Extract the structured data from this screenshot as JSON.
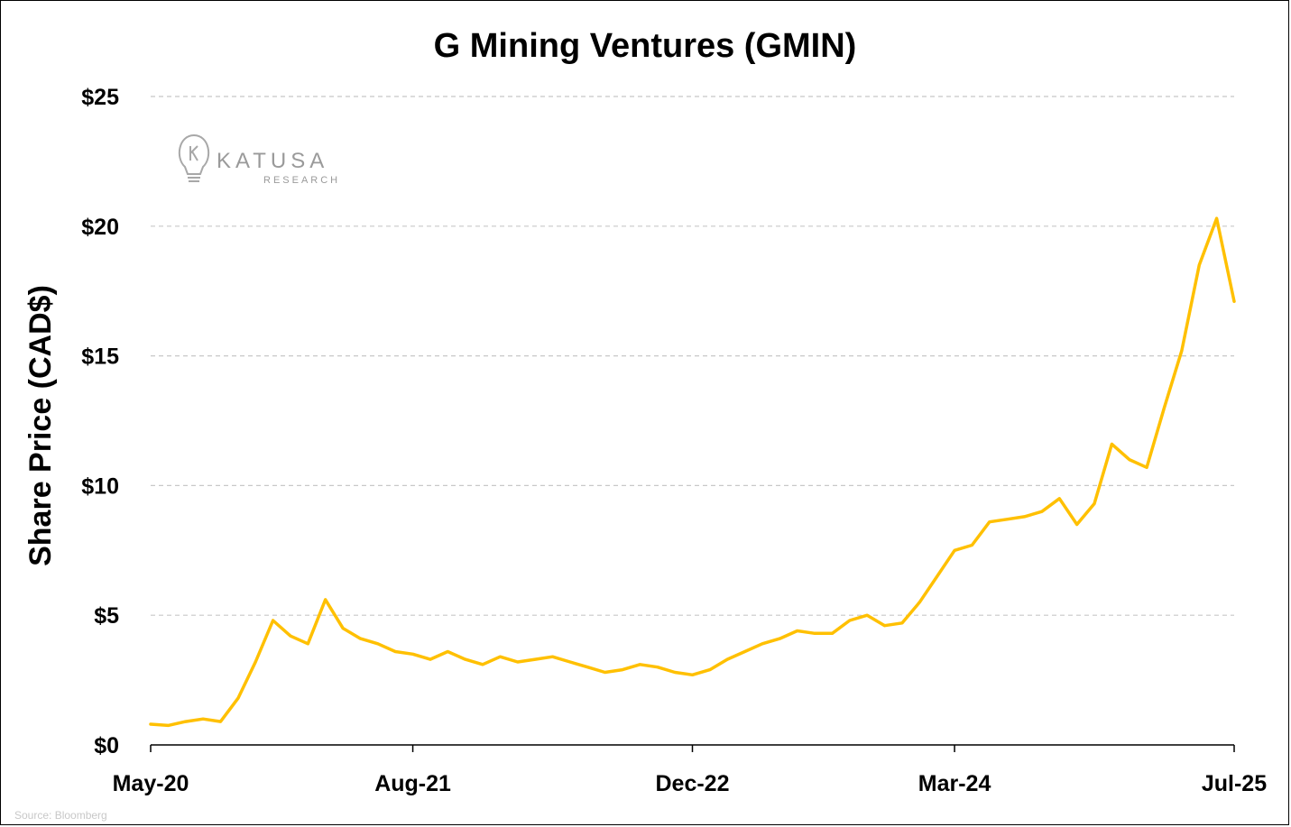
{
  "chart_data": {
    "type": "line",
    "title": "G Mining Ventures (GMIN)",
    "ylabel": "Share Price (CAD$)",
    "xlabel": "",
    "ylim": [
      0,
      25
    ],
    "y_ticks": [
      0,
      5,
      10,
      15,
      20,
      25
    ],
    "y_tick_labels": [
      "$0",
      "$5",
      "$10",
      "$15",
      "$20",
      "$25"
    ],
    "x_tick_labels": [
      "May-20",
      "Aug-21",
      "Dec-22",
      "Mar-24",
      "Jul-25"
    ],
    "x_tick_dates": [
      "2020-05",
      "2021-08",
      "2022-12",
      "2024-03",
      "2025-07"
    ],
    "grid": "horizontal dashed",
    "line_color": "#FFC000",
    "series": [
      {
        "x": [
          "2020-05",
          "2020-06",
          "2020-07",
          "2020-08",
          "2020-09",
          "2020-10",
          "2020-11",
          "2020-12",
          "2021-01",
          "2021-02",
          "2021-03",
          "2021-04",
          "2021-05",
          "2021-06",
          "2021-07",
          "2021-08",
          "2021-09",
          "2021-10",
          "2021-11",
          "2021-12",
          "2022-01",
          "2022-02",
          "2022-03",
          "2022-04",
          "2022-05",
          "2022-06",
          "2022-07",
          "2022-08",
          "2022-09",
          "2022-10",
          "2022-11",
          "2022-12",
          "2023-01",
          "2023-02",
          "2023-03",
          "2023-04",
          "2023-05",
          "2023-06",
          "2023-07",
          "2023-08",
          "2023-09",
          "2023-10",
          "2023-11",
          "2023-12",
          "2024-01",
          "2024-02",
          "2024-03",
          "2024-04",
          "2024-05",
          "2024-06",
          "2024-07",
          "2024-08",
          "2024-09",
          "2024-10",
          "2024-11",
          "2024-12",
          "2025-01",
          "2025-02",
          "2025-03",
          "2025-04",
          "2025-05",
          "2025-06",
          "2025-07"
        ],
        "values": [
          0.8,
          0.75,
          0.9,
          1.0,
          0.9,
          1.8,
          3.2,
          4.8,
          4.2,
          3.9,
          5.6,
          4.5,
          4.1,
          3.9,
          3.6,
          3.5,
          3.3,
          3.6,
          3.3,
          3.1,
          3.4,
          3.2,
          3.3,
          3.4,
          3.2,
          3.0,
          2.8,
          2.9,
          3.1,
          3.0,
          2.8,
          2.7,
          2.9,
          3.3,
          3.6,
          3.9,
          4.1,
          4.4,
          4.3,
          4.3,
          4.8,
          5.0,
          4.6,
          4.7,
          5.5,
          6.5,
          7.5,
          7.7,
          8.6,
          8.7,
          8.8,
          9.0,
          9.5,
          8.5,
          9.3,
          11.6,
          11.0,
          10.7,
          13.0,
          15.2,
          18.5,
          20.3,
          17.1
        ]
      }
    ]
  },
  "logo": {
    "name": "KATUSA",
    "sub": "RESEARCH"
  },
  "source": "Source: Bloomberg"
}
